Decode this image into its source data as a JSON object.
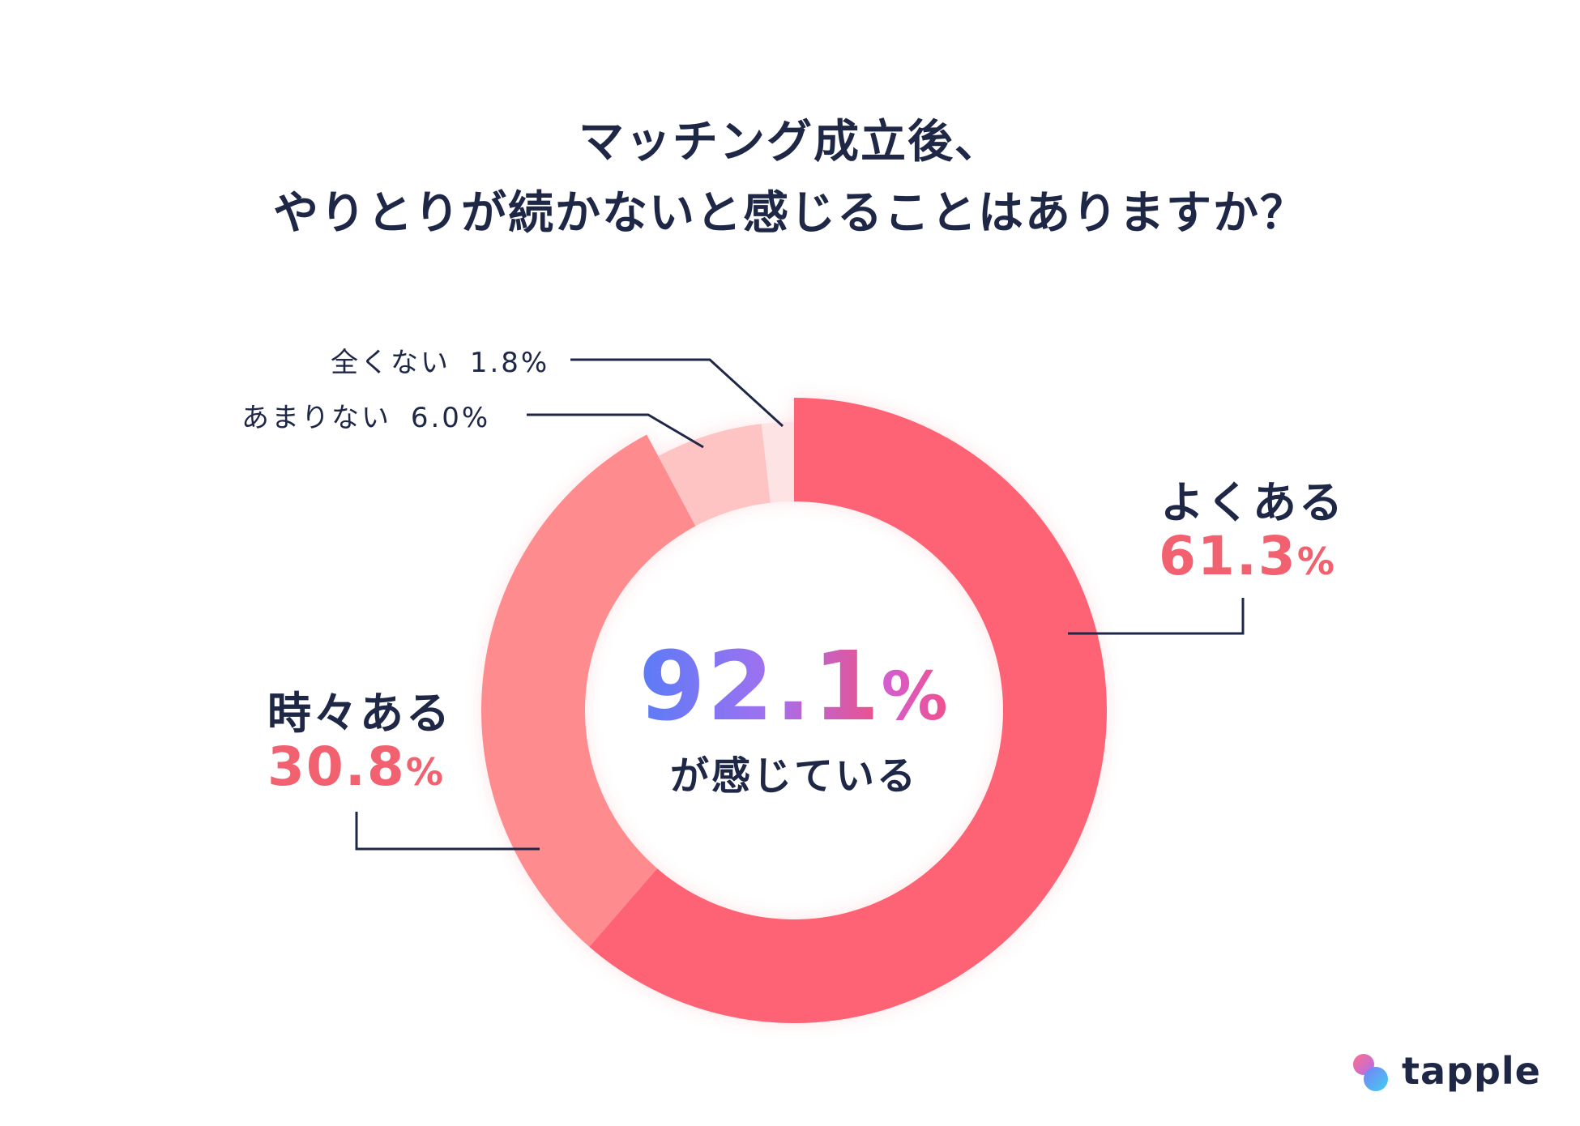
{
  "title": {
    "line1": "マッチング成立後、",
    "line2": "やりとりが続かないと感じることはありますか？"
  },
  "chart_data": {
    "type": "donut",
    "slices": [
      {
        "label": "よくある",
        "value": 61.3,
        "display": "61.3",
        "color": "#fe6474"
      },
      {
        "label": "時々ある",
        "value": 30.8,
        "display": "30.8",
        "color": "#fe8c8e"
      },
      {
        "label": "あまりない",
        "value": 6.0,
        "display": "6.0%",
        "color": "#fec4c4"
      },
      {
        "label": "全くない",
        "value": 1.8,
        "display": "1.8%",
        "color": "#fee3e4"
      }
    ],
    "center": {
      "value": "92.1",
      "unit": "%",
      "caption": "が感じている"
    },
    "percent_sign": "%"
  },
  "logo": {
    "text": "tapple"
  },
  "colors": {
    "text": "#1f2747",
    "accent": "#f2616f"
  }
}
